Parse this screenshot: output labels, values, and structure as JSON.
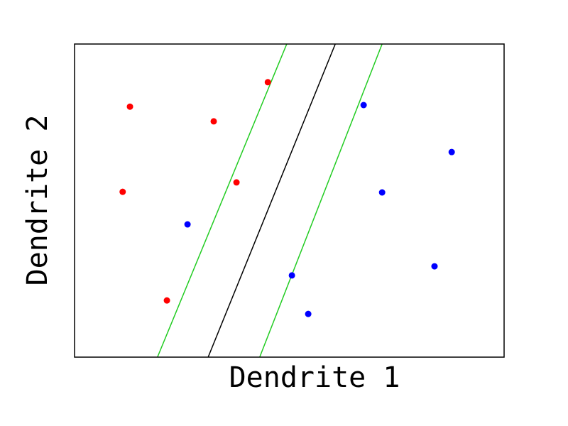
{
  "chart_data": {
    "type": "scatter",
    "x_label": "Dendrite 1",
    "y_label": "Dendrite 2",
    "xlim": [
      0,
      10
    ],
    "ylim": [
      0,
      10
    ],
    "series": [
      {
        "color": "#ff0000",
        "x": [
          1.29,
          3.24,
          4.5,
          1.12,
          3.77,
          2.15
        ],
        "y": [
          8.0,
          7.53,
          8.78,
          5.28,
          5.58,
          1.81
        ]
      },
      {
        "color": "#0000ff",
        "x": [
          6.73,
          8.78,
          7.16,
          2.63,
          5.06,
          8.38,
          5.44
        ],
        "y": [
          8.05,
          6.55,
          5.26,
          4.24,
          2.61,
          2.9,
          1.38
        ]
      }
    ],
    "lines": [
      {
        "color": "#000000",
        "x": [
          3.11,
          6.07
        ],
        "y": [
          0,
          10
        ]
      },
      {
        "color": "#22cc22",
        "x": [
          1.93,
          4.94
        ],
        "y": [
          0,
          10
        ]
      },
      {
        "color": "#22cc22",
        "x": [
          4.31,
          7.16
        ],
        "y": [
          0,
          10
        ]
      }
    ]
  }
}
